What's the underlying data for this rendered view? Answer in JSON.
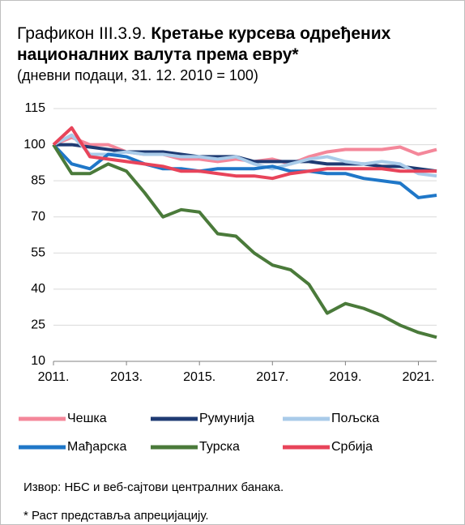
{
  "chart_data": {
    "type": "line",
    "label": "Графикон III.3.9.",
    "title": "Кретање курсева одређених националних валута према евру*",
    "subtitle": "(дневни подаци, 31. 12. 2010 = 100)",
    "x": [
      2011,
      2011.5,
      2012,
      2012.5,
      2013,
      2013.5,
      2014,
      2014.5,
      2015,
      2015.5,
      2016,
      2016.5,
      2017,
      2017.5,
      2018,
      2018.5,
      2019,
      2019.5,
      2020,
      2020.5,
      2021,
      2021.5
    ],
    "series": [
      {
        "name": "Чешка",
        "color": "#f4879a",
        "values": [
          100,
          103,
          100,
          100,
          97,
          96,
          96,
          94,
          94,
          93,
          94,
          93,
          94,
          92,
          95,
          97,
          98,
          98,
          98,
          99,
          96,
          98
        ]
      },
      {
        "name": "Румунија",
        "color": "#1f3b73",
        "values": [
          100,
          100,
          99,
          98,
          97,
          97,
          97,
          96,
          95,
          95,
          95,
          93,
          93,
          93,
          93,
          92,
          92,
          92,
          91,
          91,
          90,
          89
        ]
      },
      {
        "name": "Пољска",
        "color": "#a9cbe9",
        "values": [
          100,
          104,
          96,
          96,
          97,
          96,
          96,
          95,
          95,
          94,
          95,
          92,
          90,
          92,
          94,
          95,
          93,
          92,
          93,
          92,
          88,
          87
        ]
      },
      {
        "name": "Мађарска",
        "color": "#1f77c8",
        "values": [
          100,
          92,
          90,
          96,
          95,
          92,
          90,
          90,
          89,
          90,
          90,
          90,
          91,
          89,
          89,
          88,
          88,
          86,
          85,
          84,
          78,
          79
        ]
      },
      {
        "name": "Турска",
        "color": "#4a7a3a",
        "values": [
          100,
          88,
          88,
          92,
          89,
          80,
          70,
          73,
          72,
          63,
          62,
          55,
          50,
          48,
          42,
          30,
          34,
          32,
          29,
          25,
          22,
          20
        ]
      },
      {
        "name": "Србија",
        "color": "#e8445a",
        "values": [
          100,
          107,
          95,
          94,
          93,
          92,
          91,
          89,
          89,
          88,
          87,
          87,
          86,
          88,
          89,
          90,
          90,
          90,
          90,
          89,
          89,
          89
        ]
      }
    ],
    "xlim": [
      2011,
      2021.5
    ],
    "xticks": [
      {
        "value": 2011,
        "label": "2011."
      },
      {
        "value": 2013,
        "label": "2013."
      },
      {
        "value": 2015,
        "label": "2015."
      },
      {
        "value": 2017,
        "label": "2017."
      },
      {
        "value": 2019,
        "label": "2019."
      },
      {
        "value": 2021,
        "label": "2021."
      }
    ],
    "ylim": [
      10,
      115
    ],
    "yticks": [
      10,
      25,
      40,
      55,
      70,
      85,
      100,
      115
    ],
    "grid": true,
    "legend": "bottom",
    "source": "Извор: НБС и веб-сајтови централних банака.",
    "footnote": "* Раст представља апрецијацију."
  }
}
